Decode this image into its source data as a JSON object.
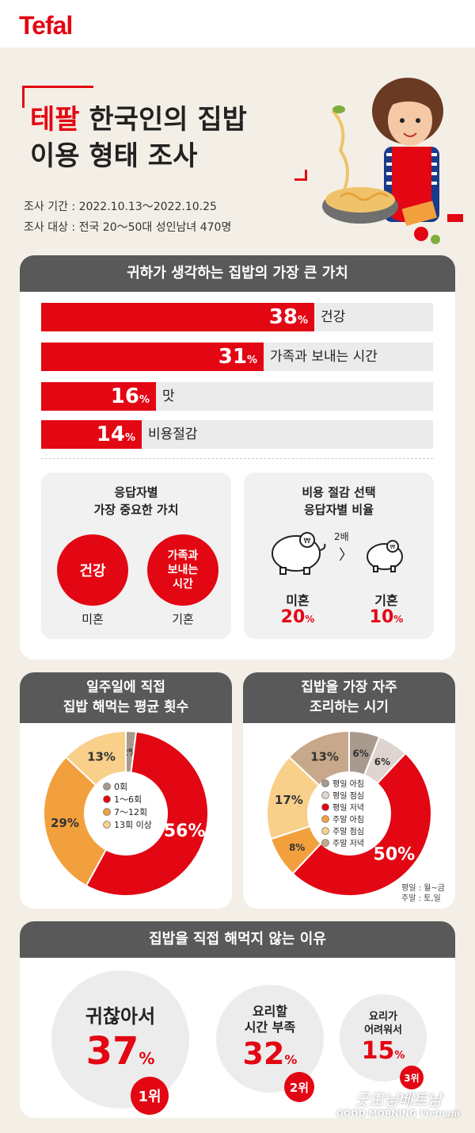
{
  "brand": "Tefal",
  "title": {
    "highlight": "테팔",
    "line1_rest": "한국인의 집밥",
    "line2": "이용 형태 조사"
  },
  "meta": {
    "period": "조사 기간 : 2022.10.13～2022.10.25",
    "target": "조사 대상 : 전국 20～50대 성인남녀 470명"
  },
  "section1": {
    "heading": "귀하가 생각하는 집밥의 가장 큰 가치",
    "sub_left": {
      "title_l1": "응답자별",
      "title_l2": "가장 중요한 가치",
      "circle1": "건강",
      "circle2_l1": "가족과",
      "circle2_l2": "보내는",
      "circle2_l3": "시간",
      "label1": "미혼",
      "label2": "기혼"
    },
    "sub_right": {
      "title_l1": "비용 절감 선택",
      "title_l2": "응답자별 비율",
      "ratio": "2배",
      "arrow": "〉",
      "label1": "미혼",
      "value1": "20",
      "label2": "기혼",
      "value2": "10",
      "unit": "%"
    }
  },
  "section2": {
    "heading_l1": "일주일에 직접",
    "heading_l2": "집밥 해먹는 평균 횟수"
  },
  "section3": {
    "heading_l1": "집밥을 가장 자주",
    "heading_l2": "조리하는 시기",
    "note_l1": "평일 : 월~금",
    "note_l2": "주말 : 토,일"
  },
  "section4": {
    "heading": "집밥을 직접 해먹지 않는 이유",
    "items": [
      {
        "label": "귀찮아서",
        "value": "37",
        "unit": "%",
        "rank": "1위"
      },
      {
        "label_l1": "요리할",
        "label_l2": "시간 부족",
        "value": "32",
        "unit": "%",
        "rank": "2위"
      },
      {
        "label_l1": "요리가",
        "label_l2": "어려워서",
        "value": "15",
        "unit": "%",
        "rank": "3위"
      }
    ]
  },
  "watermark": {
    "script": "굿모닝베트남",
    "text1": "GOOD MORNING",
    "text2": "Vietnam"
  },
  "colors": {
    "red": "#e30613",
    "grey_head": "#595959",
    "bar_bg": "#ebebeb"
  },
  "chart_data": [
    {
      "type": "bar",
      "title": "귀하가 생각하는 집밥의 가장 큰 가치",
      "categories": [
        "건강",
        "가족과 보내는 시간",
        "맛",
        "비용절감"
      ],
      "values": [
        38,
        31,
        16,
        14
      ],
      "unit": "%"
    },
    {
      "type": "pie",
      "title": "일주일에 직접 집밥 해먹는 평균 횟수",
      "categories": [
        "0회",
        "1～6회",
        "7～12회",
        "13회 이상"
      ],
      "values": [
        2,
        56,
        29,
        13
      ],
      "colors": [
        "#a89a8c",
        "#e30613",
        "#f2a03d",
        "#f8d08a"
      ],
      "unit": "%"
    },
    {
      "type": "pie",
      "title": "집밥을 가장 자주 조리하는 시기",
      "categories": [
        "평일 아침",
        "평일 점심",
        "평일 저녁",
        "주말 아침",
        "주말 점심",
        "주말 저녁"
      ],
      "values": [
        6,
        6,
        50,
        8,
        17,
        13
      ],
      "colors": [
        "#a89a8c",
        "#e0d4d0",
        "#e30613",
        "#f2a03d",
        "#f8d08a",
        "#c8a88a"
      ],
      "unit": "%"
    }
  ]
}
